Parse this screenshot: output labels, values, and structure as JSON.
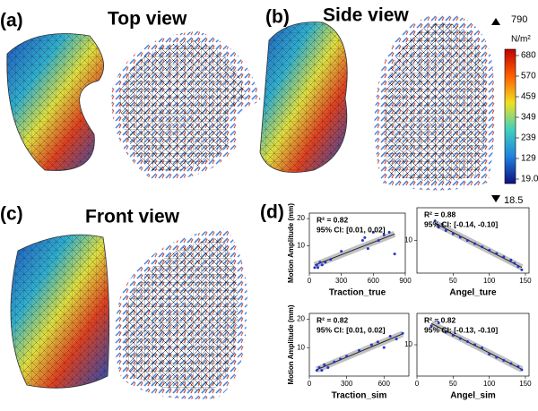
{
  "panels": {
    "a": {
      "label": "(a)",
      "title": "Top view"
    },
    "b": {
      "label": "(b)",
      "title": "Side view"
    },
    "c": {
      "label": "(c)",
      "title": "Front view"
    },
    "d": {
      "label": "(d)"
    }
  },
  "colorbar": {
    "unit": "N/m²",
    "max": 790,
    "min": 18.5,
    "ticks": [
      680,
      570,
      459,
      349,
      239,
      129,
      {
        "value": 19,
        "label": "19.0"
      }
    ]
  },
  "chart_data": [
    {
      "type": "scatter",
      "xlabel": "Traction_true",
      "ylabel": "Motion Amplitude (mm)",
      "annotations": [
        "R² = 0.82",
        "95% CI: [0.01, 0.02]"
      ],
      "color": "#2233cc",
      "x": [
        50,
        70,
        80,
        100,
        120,
        150,
        200,
        300,
        500,
        520,
        550,
        600,
        650,
        700,
        750,
        800
      ],
      "y": [
        2,
        3,
        2,
        4,
        3,
        4,
        5,
        8,
        12,
        13,
        9,
        15,
        12,
        14,
        15,
        7
      ],
      "xlim": [
        0,
        900
      ],
      "xticks": [
        0,
        300,
        600,
        900
      ],
      "ylim": [
        0,
        22
      ],
      "yticks": [
        10,
        20
      ]
    },
    {
      "type": "scatter",
      "xlabel": "Angel_ture",
      "annotations": [
        "R² = 0.88",
        "95% CI: [-0.14, -0.10]"
      ],
      "color": "#2233cc",
      "x": [
        25,
        30,
        35,
        40,
        50,
        60,
        70,
        80,
        90,
        100,
        110,
        120,
        130,
        135,
        140,
        145
      ],
      "y": [
        16,
        14,
        15,
        13,
        12,
        11,
        10,
        9,
        8,
        7,
        6,
        5,
        4,
        3,
        2,
        1
      ],
      "xlim": [
        0,
        155
      ],
      "xticks": [
        50,
        100,
        150
      ],
      "ylim": [
        0,
        20
      ],
      "yticks": [
        10
      ]
    },
    {
      "type": "scatter",
      "xlabel": "Traction_sim",
      "ylabel": "Motion Amplitude (mm)",
      "annotations": [
        "R² = 0.82",
        "95% CI: [0.01, 0.02]"
      ],
      "color": "#2233cc",
      "x": [
        60,
        80,
        100,
        120,
        150,
        200,
        250,
        300,
        400,
        500,
        550,
        600,
        650,
        700,
        750
      ],
      "y": [
        2,
        3,
        2,
        4,
        3,
        5,
        6,
        7,
        9,
        11,
        12,
        10,
        14,
        13,
        15
      ],
      "xlim": [
        0,
        800
      ],
      "xticks": [
        0,
        300,
        600
      ],
      "ylim": [
        0,
        22
      ],
      "yticks": [
        10,
        20
      ]
    },
    {
      "type": "scatter",
      "xlabel": "Angel_sim",
      "annotations": [
        "R² = 0.82",
        "95% CI: [-0.13, -0.10]"
      ],
      "color": "#2233cc",
      "x": [
        20,
        30,
        40,
        50,
        60,
        70,
        80,
        90,
        100,
        110,
        120,
        130,
        140,
        145
      ],
      "y": [
        16,
        17,
        14,
        13,
        12,
        11,
        10,
        9,
        7,
        6,
        5,
        4,
        3,
        2
      ],
      "xlim": [
        0,
        155
      ],
      "xticks": [
        0,
        50,
        100,
        150
      ],
      "ylim": [
        0,
        20
      ],
      "yticks": [
        10
      ]
    }
  ]
}
